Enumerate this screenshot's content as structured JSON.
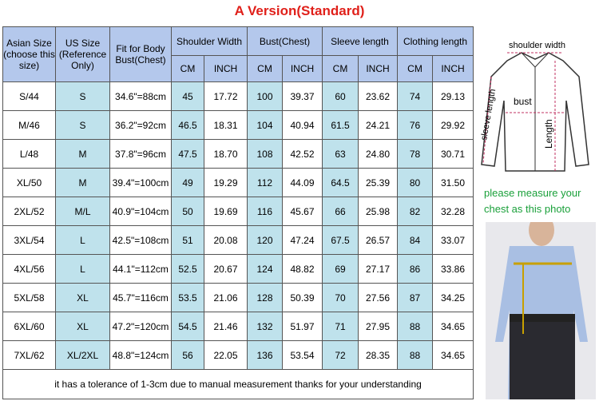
{
  "title": "A Version(Standard)",
  "table": {
    "headers": [
      "Asian Size (choose this size)",
      "US Size (Reference Only)",
      "Fit for Body Bust(Chest)",
      "Shoulder Width",
      "Bust(Chest)",
      "Sleeve length",
      "Clothing length"
    ],
    "subheaders": [
      "CM",
      "INCH",
      "CM",
      "INCH",
      "CM",
      "INCH",
      "CM",
      "INCH"
    ],
    "rows": [
      [
        "S/44",
        "S",
        "34.6\"=88cm",
        "45",
        "17.72",
        "100",
        "39.37",
        "60",
        "23.62",
        "74",
        "29.13"
      ],
      [
        "M/46",
        "S",
        "36.2\"=92cm",
        "46.5",
        "18.31",
        "104",
        "40.94",
        "61.5",
        "24.21",
        "76",
        "29.92"
      ],
      [
        "L/48",
        "M",
        "37.8\"=96cm",
        "47.5",
        "18.70",
        "108",
        "42.52",
        "63",
        "24.80",
        "78",
        "30.71"
      ],
      [
        "XL/50",
        "M",
        "39.4\"=100cm",
        "49",
        "19.29",
        "112",
        "44.09",
        "64.5",
        "25.39",
        "80",
        "31.50"
      ],
      [
        "2XL/52",
        "M/L",
        "40.9\"=104cm",
        "50",
        "19.69",
        "116",
        "45.67",
        "66",
        "25.98",
        "82",
        "32.28"
      ],
      [
        "3XL/54",
        "L",
        "42.5\"=108cm",
        "51",
        "20.08",
        "120",
        "47.24",
        "67.5",
        "26.57",
        "84",
        "33.07"
      ],
      [
        "4XL/56",
        "L",
        "44.1\"=112cm",
        "52.5",
        "20.67",
        "124",
        "48.82",
        "69",
        "27.17",
        "86",
        "33.86"
      ],
      [
        "5XL/58",
        "XL",
        "45.7\"=116cm",
        "53.5",
        "21.06",
        "128",
        "50.39",
        "70",
        "27.56",
        "87",
        "34.25"
      ],
      [
        "6XL/60",
        "XL",
        "47.2\"=120cm",
        "54.5",
        "21.46",
        "132",
        "51.97",
        "71",
        "27.95",
        "88",
        "34.65"
      ],
      [
        "7XL/62",
        "XL/2XL",
        "48.8\"=124cm",
        "56",
        "22.05",
        "136",
        "53.54",
        "72",
        "28.35",
        "88",
        "34.65"
      ]
    ],
    "footer": "it has a tolerance of 1-3cm due to manual measurement thanks for your understanding"
  },
  "diagram": {
    "shoulder": "shoulder width",
    "bust": "bust",
    "sleeve": "sleeve length",
    "length": "Length"
  },
  "note": "please measure your chest as this photo"
}
